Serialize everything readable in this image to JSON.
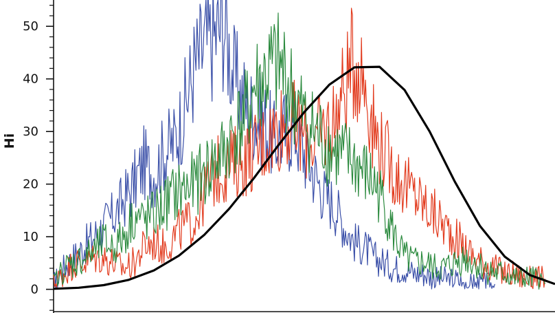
{
  "chart_data": {
    "type": "line",
    "title": "",
    "xlabel": "",
    "ylabel": "Hi",
    "xlim": [
      0,
      1000
    ],
    "ylim": [
      -4.5,
      55
    ],
    "y_ticks": [
      "0",
      "10",
      "20",
      "30",
      "40",
      "50"
    ],
    "grid": false,
    "legend": "none",
    "colors": {
      "blue": "#3a4fa8",
      "red": "#e23b1e",
      "green": "#2b8a3e",
      "black": "#000000"
    },
    "series": [
      {
        "color": "#3a4fa8",
        "x": [
          0,
          20,
          40,
          60,
          80,
          100,
          120,
          140,
          160,
          180,
          200,
          220,
          240,
          260,
          280,
          300,
          320,
          340,
          360,
          380,
          400,
          420,
          440,
          460,
          480,
          500,
          520,
          540,
          560,
          580,
          600,
          620,
          640,
          660,
          680,
          700,
          720,
          740,
          760,
          780,
          800,
          820,
          840,
          860,
          880
        ],
        "y": [
          1,
          4,
          6,
          8,
          10,
          12,
          14,
          17,
          20,
          24,
          22,
          26,
          28,
          34,
          42,
          46,
          48,
          51,
          40,
          36,
          33,
          32,
          28,
          30,
          31,
          26,
          22,
          18,
          16,
          12,
          9,
          8,
          6,
          5,
          4,
          4,
          3,
          3,
          2,
          2,
          2,
          1,
          1,
          1,
          1
        ]
      },
      {
        "color": "#e23b1e",
        "x": [
          0,
          20,
          40,
          60,
          80,
          100,
          120,
          140,
          160,
          180,
          200,
          220,
          240,
          260,
          280,
          300,
          320,
          340,
          360,
          380,
          400,
          420,
          440,
          460,
          480,
          500,
          520,
          540,
          560,
          580,
          600,
          620,
          640,
          660,
          680,
          700,
          720,
          740,
          760,
          780,
          800,
          820,
          840,
          860,
          880,
          900,
          920,
          940,
          960,
          980
        ],
        "y": [
          1,
          3,
          5,
          5,
          6,
          6,
          5,
          4,
          5,
          8,
          9,
          8,
          10,
          12,
          13,
          18,
          22,
          23,
          24,
          25,
          26,
          28,
          30,
          32,
          31,
          29,
          28,
          30,
          32,
          38,
          44,
          40,
          30,
          26,
          22,
          20,
          18,
          16,
          14,
          12,
          10,
          8,
          6,
          5,
          4,
          3,
          3,
          2,
          2,
          2
        ]
      },
      {
        "color": "#2b8a3e",
        "x": [
          0,
          20,
          40,
          60,
          80,
          100,
          120,
          140,
          160,
          180,
          200,
          220,
          240,
          260,
          280,
          300,
          320,
          340,
          360,
          380,
          400,
          420,
          440,
          460,
          480,
          500,
          520,
          540,
          560,
          580,
          600,
          620,
          640,
          660,
          680,
          700,
          720,
          740,
          760,
          780,
          800,
          820,
          840,
          860,
          880,
          900,
          920,
          940,
          960,
          980
        ],
        "y": [
          1,
          4,
          5,
          6,
          7,
          9,
          8,
          10,
          14,
          13,
          14,
          16,
          18,
          19,
          20,
          22,
          24,
          26,
          30,
          32,
          38,
          40,
          42,
          41,
          36,
          32,
          30,
          28,
          26,
          25,
          24,
          22,
          20,
          16,
          10,
          6,
          5,
          5,
          4,
          4,
          5,
          6,
          5,
          4,
          3,
          3,
          2,
          2,
          2,
          1
        ]
      },
      {
        "color": "#000000",
        "x": [
          0,
          50,
          100,
          150,
          200,
          250,
          300,
          350,
          400,
          450,
          500,
          550,
          600,
          650,
          700,
          750,
          800,
          850,
          900,
          950,
          1000
        ],
        "y": [
          0.1,
          0.3,
          0.8,
          1.8,
          3.6,
          6.4,
          10.3,
          15.3,
          21.2,
          27.6,
          33.7,
          38.9,
          42.2,
          42.3,
          37.9,
          30.0,
          20.5,
          12.1,
          6.2,
          2.7,
          1.0
        ]
      }
    ]
  }
}
